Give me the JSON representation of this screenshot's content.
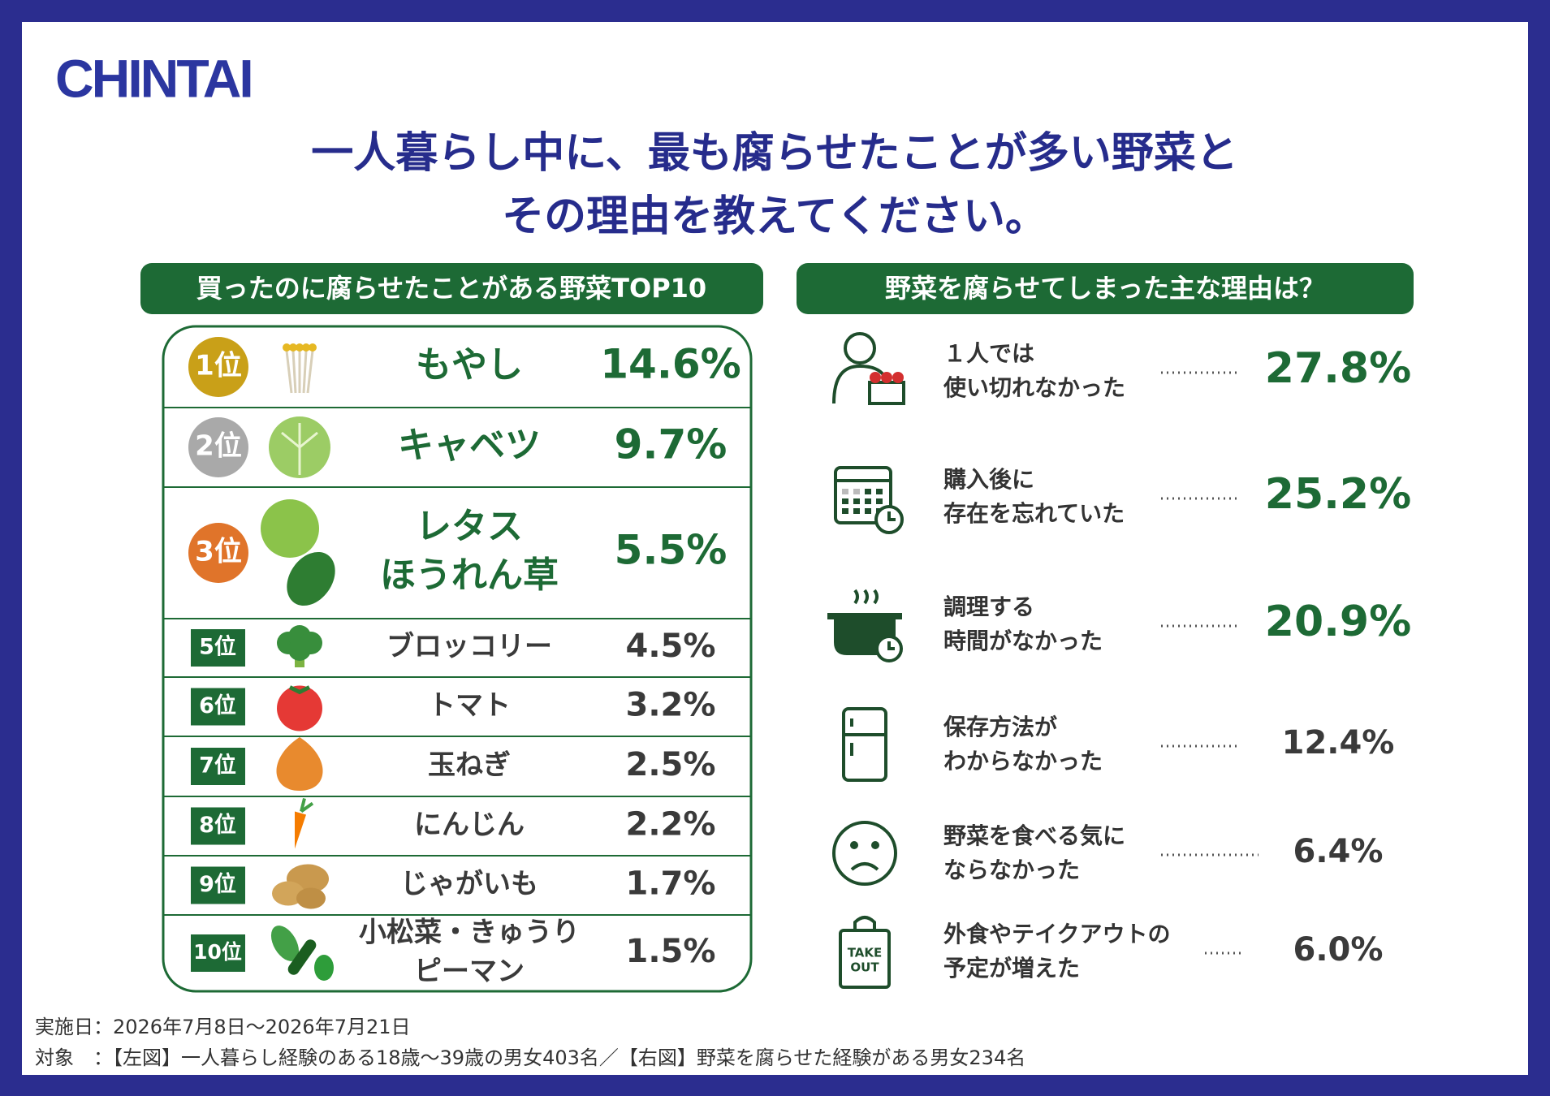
{
  "header": {
    "logo": "CHINTAI",
    "title": [
      "一人暮らし中に、最も腐らせたことが多い野菜と",
      "その理由を教えてください。"
    ]
  },
  "left": {
    "heading": "買ったのに腐らせたことがある野菜TOP10",
    "rows": [
      {
        "rank": "1位",
        "name": [
          "もやし"
        ],
        "value": "14.6%"
      },
      {
        "rank": "2位",
        "name": [
          "キャベツ"
        ],
        "value": "9.7%"
      },
      {
        "rank": "3位",
        "name": [
          "レタス",
          "ほうれん草"
        ],
        "value": "5.5%"
      },
      {
        "rank": "5位",
        "name": [
          "ブロッコリー"
        ],
        "value": "4.5%"
      },
      {
        "rank": "6位",
        "name": [
          "トマト"
        ],
        "value": "3.2%"
      },
      {
        "rank": "7位",
        "name": [
          "玉ねぎ"
        ],
        "value": "2.5%"
      },
      {
        "rank": "8位",
        "name": [
          "にんじん"
        ],
        "value": "2.2%"
      },
      {
        "rank": "9位",
        "name": [
          "じゃがいも"
        ],
        "value": "1.7%"
      },
      {
        "rank": "10位",
        "name": [
          "小松菜・きゅうり",
          "ピーマン"
        ],
        "value": "1.5%"
      }
    ]
  },
  "right": {
    "heading": "野菜を腐らせてしまった主な理由は？",
    "rows": [
      {
        "reason": [
          "１人では",
          "使い切れなかった"
        ],
        "value": "27.8%"
      },
      {
        "reason": [
          "購入後に",
          "存在を忘れていた"
        ],
        "value": "25.2%"
      },
      {
        "reason": [
          "調理する",
          "時間がなかった"
        ],
        "value": "20.9%"
      },
      {
        "reason": [
          "保存方法が",
          "わからなかった"
        ],
        "value": "12.4%"
      },
      {
        "reason": [
          "野菜を食べる気に",
          "ならなかった"
        ],
        "value": "6.4%"
      },
      {
        "reason": [
          "外食やテイクアウトの",
          "予定が増えた"
        ],
        "value": "6.0%",
        "icon_text": [
          "TAKE",
          "OUT"
        ]
      }
    ]
  },
  "footer": [
    "実施日：2026年7月8日〜2026年7月21日",
    "対象　：【左図】一人暮らし経験のある18歳〜39歳の男女403名／【右図】野菜を腐らせた経験がある男女234名"
  ]
}
